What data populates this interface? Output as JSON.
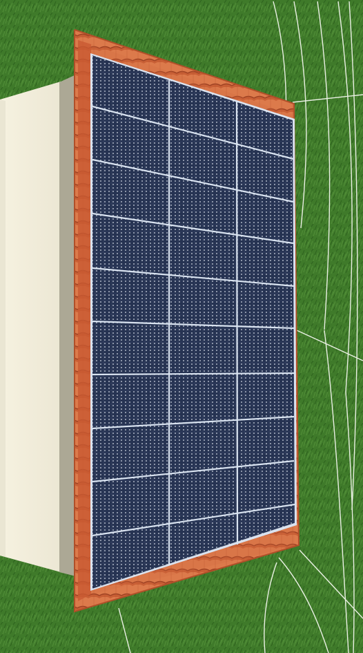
{
  "viewport": {
    "mode": "3d-roof-view",
    "description_visible": false
  },
  "colors": {
    "grass_dark": "#2f6a1f",
    "grass_light": "#4d8d34",
    "guide_line": "#f5f7f2",
    "wall_face": "#f3f0df",
    "wall_side": "#bcb8a5",
    "roof_tile": "#d86f44",
    "roof_tile_shadow": "#a94b2b",
    "panel_fill": "#26314d",
    "panel_frame": "#dfe6f2",
    "panel_cell_dot": "#d7dde9"
  },
  "roof": {
    "label": "roof",
    "panel_layout": {
      "columns": 3,
      "rows": 10
    }
  },
  "guides": [
    {
      "name": "guide-line"
    },
    {
      "name": "guide-line"
    },
    {
      "name": "guide-line"
    },
    {
      "name": "guide-line"
    },
    {
      "name": "guide-line"
    }
  ]
}
